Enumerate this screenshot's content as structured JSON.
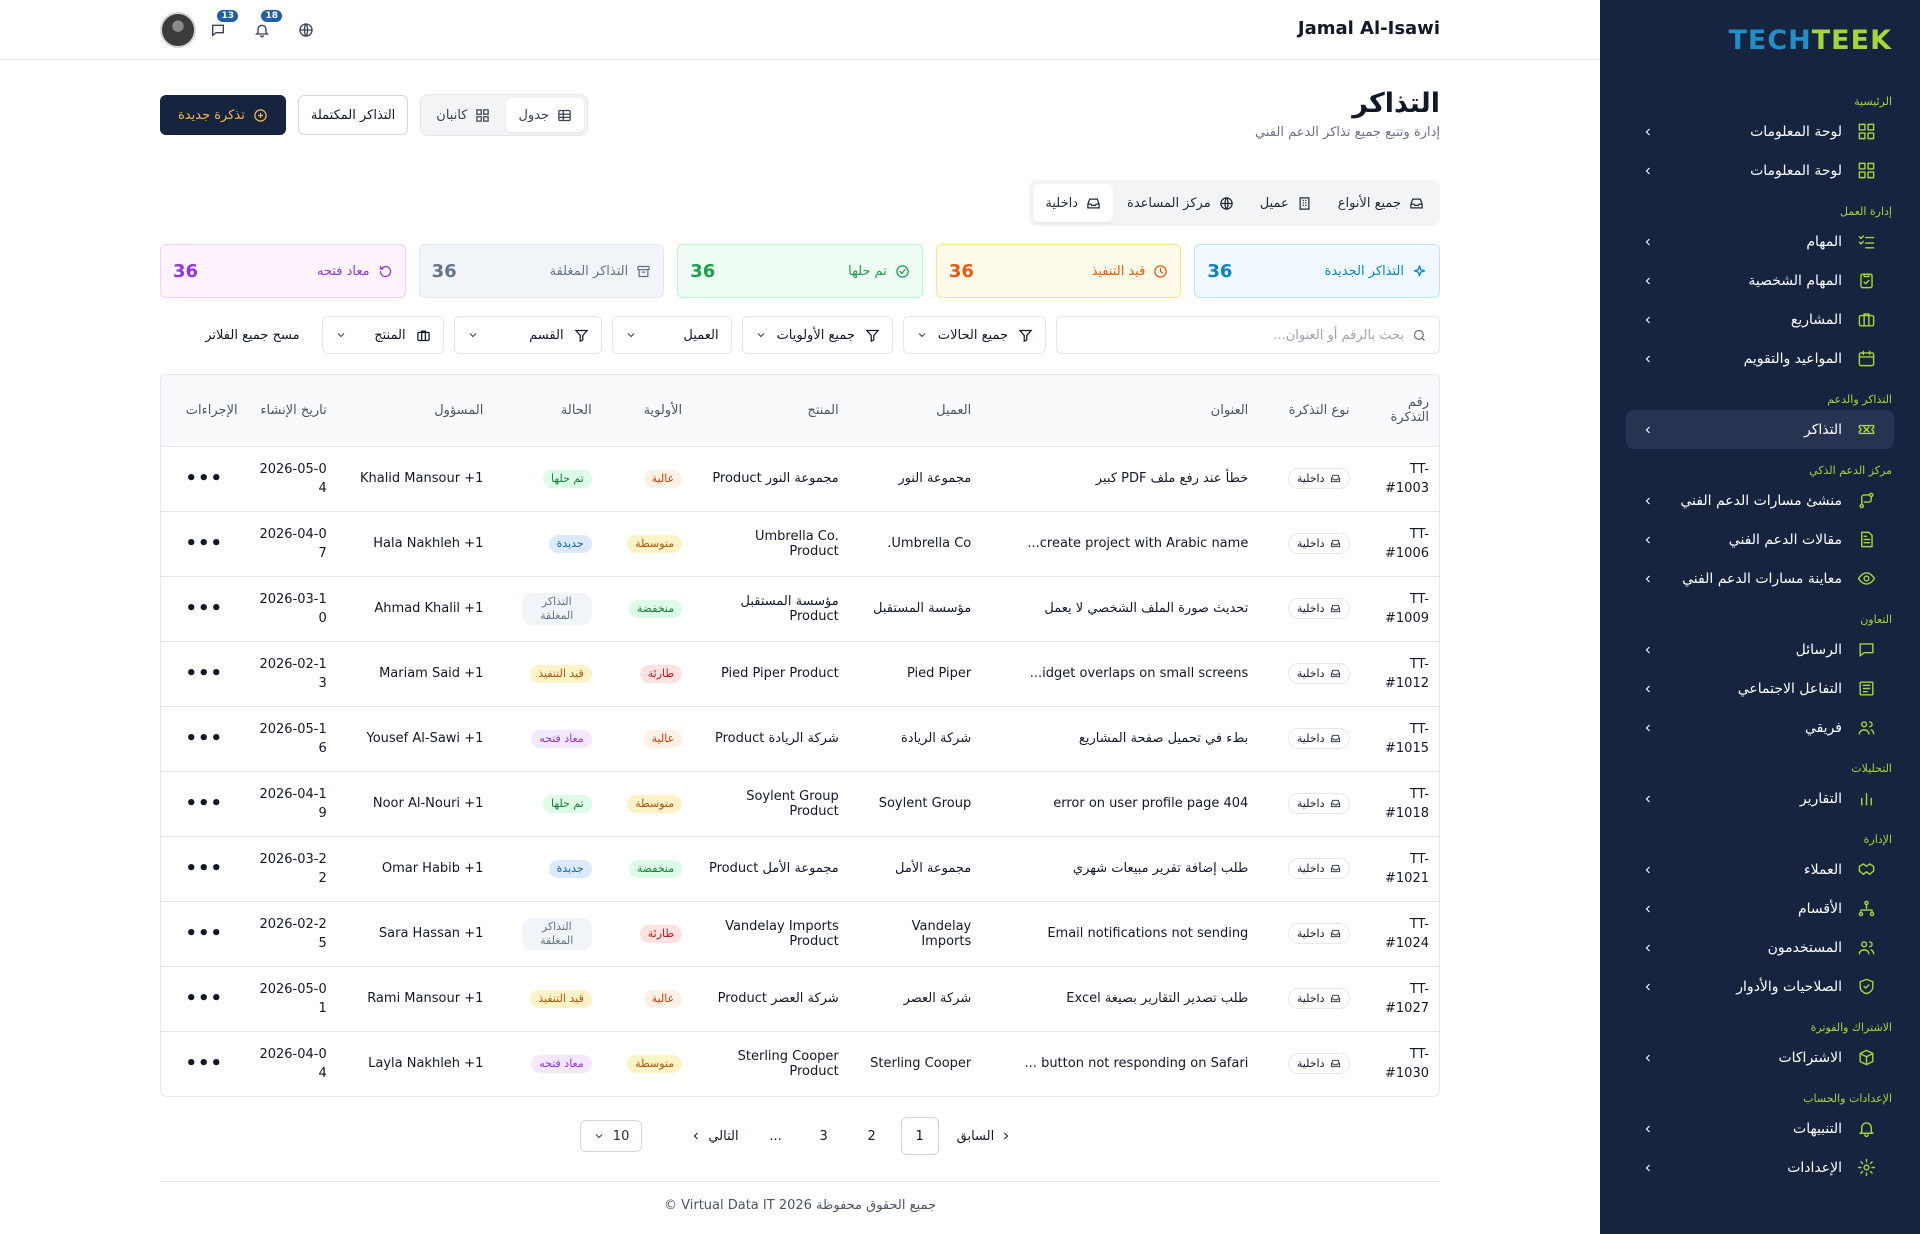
{
  "brand": {
    "part1": "TECH",
    "part2": "TEEK"
  },
  "header": {
    "user_name": "Jamal Al-Isawi",
    "messages_count": "13",
    "notifications_count": "18"
  },
  "sidebar": {
    "sections": [
      {
        "title": "الرئيسية",
        "items": [
          {
            "label": "لوحة المعلومات",
            "icon": "dashboard-icon"
          },
          {
            "label": "لوحة المعلومات",
            "icon": "dashboard-icon"
          }
        ]
      },
      {
        "title": "إدارة العمل",
        "items": [
          {
            "label": "المهام",
            "icon": "tasks-icon"
          },
          {
            "label": "المهام الشخصية",
            "icon": "clipboard-icon"
          },
          {
            "label": "المشاريع",
            "icon": "briefcase-icon"
          },
          {
            "label": "المواعيد والتقويم",
            "icon": "calendar-icon"
          }
        ]
      },
      {
        "title": "التذاكر والدعم",
        "items": [
          {
            "label": "التذاكر",
            "icon": "ticket-icon",
            "active": true
          }
        ]
      },
      {
        "title": "مركز الدعم الذكي",
        "items": [
          {
            "label": "منشئ مسارات الدعم الفني",
            "icon": "route-icon"
          },
          {
            "label": "مقالات الدعم الفني",
            "icon": "article-icon"
          },
          {
            "label": "معاينة مسارات الدعم الفني",
            "icon": "eye-icon"
          }
        ]
      },
      {
        "title": "التعاون",
        "items": [
          {
            "label": "الرسائل",
            "icon": "chat-icon"
          },
          {
            "label": "التفاعل الاجتماعي",
            "icon": "newspaper-icon"
          },
          {
            "label": "فريقي",
            "icon": "team-icon"
          }
        ]
      },
      {
        "title": "التحليلات",
        "items": [
          {
            "label": "التقارير",
            "icon": "bar-chart-icon"
          }
        ]
      },
      {
        "title": "الإدارة",
        "items": [
          {
            "label": "العملاء",
            "icon": "handshake-icon"
          },
          {
            "label": "الأقسام",
            "icon": "org-chart-icon"
          },
          {
            "label": "المستخدمون",
            "icon": "users-icon"
          },
          {
            "label": "الصلاحيات والأدوار",
            "icon": "shield-icon"
          }
        ]
      },
      {
        "title": "الاشتراك والفوترة",
        "items": [
          {
            "label": "الاشتراكات",
            "icon": "package-icon"
          }
        ]
      },
      {
        "title": "الإعدادات والحساب",
        "items": [
          {
            "label": "التنبيهات",
            "icon": "bell-icon"
          },
          {
            "label": "الإعدادات",
            "icon": "gear-icon"
          }
        ]
      }
    ]
  },
  "page": {
    "title": "التذاكر",
    "subtitle": "إدارة وتتبع جميع تذاكر الدعم الفني",
    "new_ticket": "تذكرة جديدة",
    "completed_tickets": "التذاكر المكتملة",
    "view_kanban": "كانبان",
    "view_table": "جدول"
  },
  "type_tabs": [
    "جميع الأنواع",
    "عميل",
    "مركز المساعدة",
    "داخلية"
  ],
  "stats": [
    {
      "label": "التذاكر الجديدة",
      "value": "36",
      "color": "#0284c7",
      "bg": "#f0f9ff",
      "border": "#bae6fd",
      "icon": "sparkle-icon"
    },
    {
      "label": "قيد التنفيذ",
      "value": "36",
      "color": "#ea580c",
      "bg": "#fffbeb",
      "border": "#fde68a",
      "icon": "clock-icon"
    },
    {
      "label": "تم حلها",
      "value": "36",
      "color": "#16a34a",
      "bg": "#f0fdf4",
      "border": "#bbf7d0",
      "icon": "check-circle-icon"
    },
    {
      "label": "التذاكر المغلقة",
      "value": "36",
      "color": "#64748b",
      "bg": "#f1f5f9",
      "border": "#e2e8f0",
      "icon": "archive-icon"
    },
    {
      "label": "معاد فتحه",
      "value": "36",
      "color": "#9333ea",
      "bg": "#fdf4ff",
      "border": "#f5d0fe",
      "icon": "reopen-icon"
    }
  ],
  "filters": {
    "search_placeholder": "بحث بالرقم أو العنوان...",
    "status": "جميع الحالات",
    "priority": "جميع الأولويات",
    "client": "العميل",
    "department": "القسم",
    "product": "المنتج",
    "clear": "مسح جميع الفلاتر"
  },
  "table": {
    "columns": [
      "رقم التذكرة",
      "نوع التذكرة",
      "العنوان",
      "العميل",
      "المنتج",
      "الأولوية",
      "الحالة",
      "المسؤول",
      "تاريخ الإنشاء",
      "الإجراءات"
    ],
    "rows": [
      {
        "no": "TT-#1003",
        "type": "داخلية",
        "title": "خطأ عند رفع ملف PDF كبير",
        "client": "مجموعة النور",
        "product": "مجموعة النور Product",
        "priority": "عالية",
        "status": "تم حلها",
        "assignee": "Khalid Mansour +1",
        "date": "2026-05-04"
      },
      {
        "no": "TT-#1006",
        "type": "داخلية",
        "title": "create project with Arabic name...",
        "client": "Umbrella Co.",
        "product": "Umbrella Co. Product",
        "priority": "متوسطة",
        "status": "جديدة",
        "assignee": "Hala Nakhleh +1",
        "date": "2026-04-07"
      },
      {
        "no": "TT-#1009",
        "type": "داخلية",
        "title": "تحديث صورة الملف الشخصي لا يعمل",
        "client": "مؤسسة المستقبل",
        "product": "مؤسسة المستقبل Product",
        "priority": "منخفضة",
        "status": "التذاكر المغلقة",
        "assignee": "Ahmad Khalil +1",
        "date": "2026-03-10"
      },
      {
        "no": "TT-#1012",
        "type": "داخلية",
        "title": "idget overlaps on small screens...",
        "client": "Pied Piper",
        "product": "Pied Piper Product",
        "priority": "طارئة",
        "status": "قيد التنفيذ",
        "assignee": "Mariam Said +1",
        "date": "2026-02-13"
      },
      {
        "no": "TT-#1015",
        "type": "داخلية",
        "title": "بطء في تحميل صفحة المشاريع",
        "client": "شركة الريادة",
        "product": "شركة الريادة Product",
        "priority": "عالية",
        "status": "معاد فتحه",
        "assignee": "Yousef Al-Sawi +1",
        "date": "2026-05-16"
      },
      {
        "no": "TT-#1018",
        "type": "داخلية",
        "title": "404 error on user profile page",
        "client": "Soylent Group",
        "product": "Soylent Group Product",
        "priority": "متوسطة",
        "status": "تم حلها",
        "assignee": "Noor Al-Nouri +1",
        "date": "2026-04-19"
      },
      {
        "no": "TT-#1021",
        "type": "داخلية",
        "title": "طلب إضافة تقرير مبيعات شهري",
        "client": "مجموعة الأمل",
        "product": "مجموعة الأمل Product",
        "priority": "منخفضة",
        "status": "جديدة",
        "assignee": "Omar Habib +1",
        "date": "2026-03-22"
      },
      {
        "no": "TT-#1024",
        "type": "داخلية",
        "title": "Email notifications not sending",
        "client": "Vandelay Imports",
        "product": "Vandelay Imports Product",
        "priority": "طارئة",
        "status": "التذاكر المغلقة",
        "assignee": "Sara Hassan +1",
        "date": "2026-02-25"
      },
      {
        "no": "TT-#1027",
        "type": "داخلية",
        "title": "طلب تصدير التقارير بصيغة Excel",
        "client": "شركة العصر",
        "product": "شركة العصر Product",
        "priority": "عالية",
        "status": "قيد التنفيذ",
        "assignee": "Rami Mansour +1",
        "date": "2026-05-01"
      },
      {
        "no": "TT-#1030",
        "type": "داخلية",
        "title": "button not responding on Safari ...",
        "client": "Sterling Cooper",
        "product": "Sterling Cooper Product",
        "priority": "متوسطة",
        "status": "معاد فتحه",
        "assignee": "Layla Nakhleh +1",
        "date": "2026-04-04"
      }
    ]
  },
  "pill_colors": {
    "عالية": {
      "bg": "#fff1e6",
      "fg": "#c2410c"
    },
    "متوسطة": {
      "bg": "#fef3c7",
      "fg": "#b45309"
    },
    "منخفضة": {
      "bg": "#dcfce7",
      "fg": "#15803d"
    },
    "طارئة": {
      "bg": "#fee2e2",
      "fg": "#b91c1c"
    },
    "تم حلها": {
      "bg": "#dcfce7",
      "fg": "#15803d"
    },
    "جديدة": {
      "bg": "#dbeafe",
      "fg": "#0369a1"
    },
    "التذاكر المغلقة": {
      "bg": "#f1f5f9",
      "fg": "#64748b"
    },
    "قيد التنفيذ": {
      "bg": "#fef3c7",
      "fg": "#b45309"
    },
    "معاد فتحه": {
      "bg": "#f3e8ff",
      "fg": "#9333ea"
    }
  },
  "pagination": {
    "prev": "السابق",
    "pages": [
      "1",
      "2",
      "3"
    ],
    "ellipsis": "...",
    "next": "التالي",
    "page_size": "10"
  },
  "footer": {
    "text": "جميع الحقوق محفوظة Virtual Data IT 2026 ©"
  }
}
